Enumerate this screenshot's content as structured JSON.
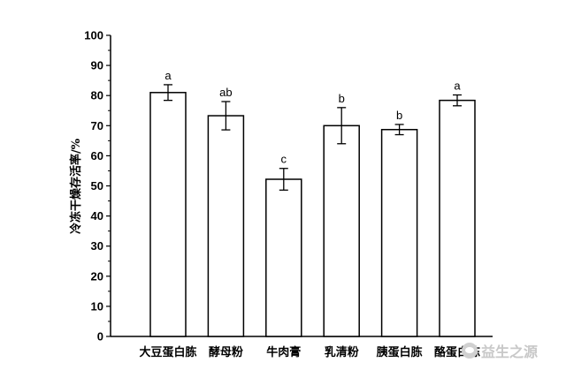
{
  "chart_data": {
    "type": "bar",
    "title": "",
    "xlabel": "",
    "ylabel": "冷冻干燥存活率/%",
    "ylim": [
      0,
      100
    ],
    "yticks": [
      0,
      10,
      20,
      30,
      40,
      50,
      60,
      70,
      80,
      90,
      100
    ],
    "categories": [
      "大豆蛋白胨",
      "酵母粉",
      "牛肉膏",
      "乳清粉",
      "胰蛋白胨",
      "酪蛋白胨"
    ],
    "values": [
      81,
      73.3,
      52.2,
      70,
      68.7,
      78.4
    ],
    "errors": [
      2.6,
      4.7,
      3.6,
      6,
      1.7,
      1.8
    ],
    "significance": [
      "a",
      "ab",
      "c",
      "b",
      "b",
      "a"
    ],
    "grid": false,
    "bar_fill": "#ffffff",
    "bar_stroke": "#000000"
  },
  "watermark": {
    "text": "益生之源",
    "icon": "wechat-icon"
  }
}
